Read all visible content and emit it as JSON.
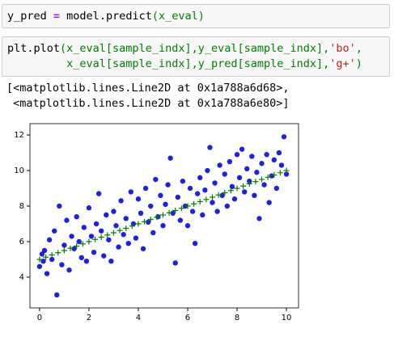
{
  "code_cells": [
    {
      "lines": [
        [
          {
            "text": "y_pred ",
            "color": "#000000"
          },
          {
            "text": "=",
            "color": "#aa22ff"
          },
          {
            "text": " model.predict",
            "color": "#000000"
          },
          {
            "text": "(x_eval)",
            "color": "#008000"
          }
        ]
      ]
    },
    {
      "lines": [
        [
          {
            "text": "plt.plot",
            "color": "#000000"
          },
          {
            "text": "(x_eval[sample_indx],y_eval[sample_indx],",
            "color": "#008000"
          },
          {
            "text": "'bo'",
            "color": "#ba2121"
          },
          {
            "text": ",",
            "color": "#008000"
          }
        ],
        [
          {
            "text": "         x_eval[sample_indx],y_pred[sample_indx],",
            "color": "#008000"
          },
          {
            "text": "'g+'",
            "color": "#ba2121"
          },
          {
            "text": ")",
            "color": "#008000"
          }
        ]
      ]
    }
  ],
  "output_lines": [
    "[<matplotlib.lines.Line2D at 0x1a788a6d68>,",
    " <matplotlib.lines.Line2D at 0x1a788a6e80>]"
  ],
  "chart_data": {
    "type": "scatter",
    "xlim": [
      -0.39,
      10.49
    ],
    "ylim": [
      2.27,
      12.64
    ],
    "xticks": [
      0,
      2,
      4,
      6,
      8,
      10
    ],
    "yticks": [
      4,
      6,
      8,
      10,
      12
    ],
    "series": [
      {
        "color": "#2020e0",
        "marker": "o",
        "x": [
          0.0,
          0.1,
          0.15,
          0.2,
          0.3,
          0.4,
          0.5,
          0.6,
          0.7,
          0.8,
          0.9,
          1.0,
          1.1,
          1.2,
          1.3,
          1.4,
          1.5,
          1.6,
          1.7,
          1.8,
          1.9,
          2.0,
          2.1,
          2.2,
          2.3,
          2.4,
          2.5,
          2.6,
          2.7,
          2.8,
          2.9,
          3.0,
          3.1,
          3.2,
          3.3,
          3.4,
          3.5,
          3.6,
          3.7,
          3.8,
          3.9,
          4.0,
          4.1,
          4.2,
          4.3,
          4.4,
          4.5,
          4.6,
          4.7,
          4.8,
          4.9,
          5.0,
          5.1,
          5.2,
          5.3,
          5.4,
          5.5,
          5.6,
          5.7,
          5.8,
          5.9,
          6.0,
          6.1,
          6.2,
          6.3,
          6.4,
          6.5,
          6.6,
          6.7,
          6.8,
          6.9,
          7.0,
          7.1,
          7.2,
          7.3,
          7.4,
          7.5,
          7.6,
          7.7,
          7.8,
          7.9,
          8.0,
          8.1,
          8.2,
          8.3,
          8.4,
          8.5,
          8.6,
          8.7,
          8.8,
          8.9,
          9.0,
          9.1,
          9.2,
          9.3,
          9.4,
          9.5,
          9.6,
          9.7,
          9.8,
          9.9,
          10.0
        ],
        "values": [
          4.6,
          5.3,
          4.9,
          5.5,
          4.2,
          6.1,
          5.0,
          6.6,
          3.0,
          8.0,
          4.7,
          5.8,
          7.2,
          4.4,
          6.3,
          5.6,
          7.4,
          6.0,
          5.1,
          6.8,
          4.9,
          7.9,
          6.3,
          5.4,
          7.0,
          8.7,
          6.6,
          5.2,
          7.5,
          6.1,
          4.9,
          7.7,
          6.9,
          5.7,
          8.3,
          6.4,
          7.3,
          5.9,
          8.8,
          7.0,
          6.2,
          8.4,
          7.6,
          5.6,
          9.0,
          7.1,
          8.0,
          6.5,
          9.5,
          7.4,
          8.6,
          6.9,
          8.1,
          9.2,
          10.7,
          7.6,
          4.8,
          8.5,
          7.2,
          9.4,
          8.0,
          6.9,
          9.0,
          7.7,
          5.9,
          8.7,
          9.6,
          7.5,
          8.9,
          10.0,
          11.3,
          8.2,
          9.3,
          7.7,
          10.3,
          8.6,
          9.8,
          8.0,
          10.5,
          9.1,
          8.4,
          10.9,
          9.6,
          11.2,
          8.8,
          10.1,
          9.4,
          10.8,
          8.6,
          9.9,
          7.3,
          10.4,
          9.2,
          10.9,
          8.2,
          9.7,
          10.6,
          9.0,
          11.0,
          10.3,
          11.9,
          9.8
        ]
      },
      {
        "color": "#008000",
        "marker": "+",
        "x": [
          0,
          0.25,
          0.5,
          0.75,
          1,
          1.25,
          1.5,
          1.75,
          2,
          2.25,
          2.5,
          2.75,
          3,
          3.25,
          3.5,
          3.75,
          4,
          4.25,
          4.5,
          4.75,
          5,
          5.25,
          5.5,
          5.75,
          6,
          6.25,
          6.5,
          6.75,
          7,
          7.25,
          7.5,
          7.75,
          8,
          8.25,
          8.5,
          8.75,
          9,
          9.25,
          9.5,
          9.75,
          10
        ],
        "values": [
          5,
          5.125,
          5.25,
          5.375,
          5.5,
          5.625,
          5.75,
          5.875,
          6,
          6.125,
          6.25,
          6.375,
          6.5,
          6.625,
          6.75,
          6.875,
          7,
          7.125,
          7.25,
          7.375,
          7.5,
          7.625,
          7.75,
          7.875,
          8,
          8.125,
          8.25,
          8.375,
          8.5,
          8.625,
          8.75,
          8.875,
          9,
          9.125,
          9.25,
          9.375,
          9.5,
          9.625,
          9.75,
          9.875,
          10
        ]
      }
    ]
  }
}
